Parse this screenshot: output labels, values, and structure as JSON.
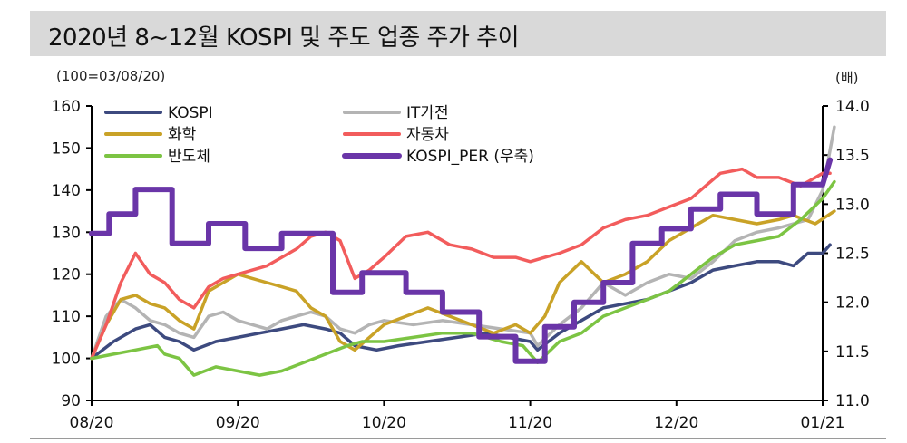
{
  "title": "2020년 8~12월 KOSPI 및 주도 업종 주가 추이",
  "left_unit": "(100=03/08/20)",
  "right_unit": "(배)",
  "chart_data": {
    "type": "line",
    "x_labels": [
      "08/20",
      "09/20",
      "10/20",
      "11/20",
      "12/20",
      "01/21"
    ],
    "x_domain": [
      0,
      5
    ],
    "y_left": {
      "range": [
        90,
        160
      ],
      "ticks": [
        90,
        100,
        110,
        120,
        130,
        140,
        150,
        160
      ]
    },
    "y_right": {
      "range": [
        11.0,
        14.0
      ],
      "ticks": [
        "11.0",
        "11.5",
        "12.0",
        "12.5",
        "13.0",
        "13.5",
        "14.0"
      ]
    },
    "legend_placement": "top-left",
    "series": [
      {
        "name": "KOSPI",
        "axis": "left",
        "color": "#3d4a7f",
        "points": [
          [
            0,
            100
          ],
          [
            0.15,
            104
          ],
          [
            0.3,
            107
          ],
          [
            0.4,
            108
          ],
          [
            0.5,
            105
          ],
          [
            0.6,
            104
          ],
          [
            0.7,
            102
          ],
          [
            0.85,
            104
          ],
          [
            1.0,
            105
          ],
          [
            1.15,
            106
          ],
          [
            1.3,
            107
          ],
          [
            1.45,
            108
          ],
          [
            1.6,
            107
          ],
          [
            1.7,
            106
          ],
          [
            1.8,
            103
          ],
          [
            1.95,
            102
          ],
          [
            2.1,
            103
          ],
          [
            2.3,
            104
          ],
          [
            2.5,
            105
          ],
          [
            2.7,
            106
          ],
          [
            2.85,
            105
          ],
          [
            3.0,
            104
          ],
          [
            3.05,
            102
          ],
          [
            3.2,
            106
          ],
          [
            3.35,
            109
          ],
          [
            3.5,
            112
          ],
          [
            3.65,
            113
          ],
          [
            3.8,
            114
          ],
          [
            3.95,
            116
          ],
          [
            4.1,
            118
          ],
          [
            4.25,
            121
          ],
          [
            4.4,
            122
          ],
          [
            4.55,
            123
          ],
          [
            4.7,
            123
          ],
          [
            4.8,
            122
          ],
          [
            4.9,
            125
          ],
          [
            5.0,
            125
          ],
          [
            5.05,
            127
          ]
        ]
      },
      {
        "name": "IT가전",
        "axis": "left",
        "color": "#b4b4b4",
        "points": [
          [
            0,
            100
          ],
          [
            0.1,
            110
          ],
          [
            0.2,
            114
          ],
          [
            0.3,
            112
          ],
          [
            0.4,
            109
          ],
          [
            0.5,
            108
          ],
          [
            0.6,
            106
          ],
          [
            0.7,
            105
          ],
          [
            0.8,
            110
          ],
          [
            0.9,
            111
          ],
          [
            1.0,
            109
          ],
          [
            1.1,
            108
          ],
          [
            1.2,
            107
          ],
          [
            1.3,
            109
          ],
          [
            1.4,
            110
          ],
          [
            1.5,
            111
          ],
          [
            1.6,
            110
          ],
          [
            1.7,
            107
          ],
          [
            1.8,
            106
          ],
          [
            1.9,
            108
          ],
          [
            2.0,
            109
          ],
          [
            2.2,
            108
          ],
          [
            2.4,
            109
          ],
          [
            2.6,
            108
          ],
          [
            2.8,
            107
          ],
          [
            3.0,
            106
          ],
          [
            3.05,
            103
          ],
          [
            3.2,
            108
          ],
          [
            3.35,
            112
          ],
          [
            3.5,
            118
          ],
          [
            3.65,
            115
          ],
          [
            3.8,
            118
          ],
          [
            3.95,
            120
          ],
          [
            4.1,
            119
          ],
          [
            4.25,
            123
          ],
          [
            4.4,
            128
          ],
          [
            4.55,
            130
          ],
          [
            4.7,
            131
          ],
          [
            4.8,
            132
          ],
          [
            4.9,
            133
          ],
          [
            5.0,
            140
          ],
          [
            5.08,
            155
          ]
        ]
      },
      {
        "name": "화학",
        "axis": "left",
        "color": "#c9a227",
        "points": [
          [
            0,
            100
          ],
          [
            0.1,
            108
          ],
          [
            0.2,
            114
          ],
          [
            0.3,
            115
          ],
          [
            0.4,
            113
          ],
          [
            0.5,
            112
          ],
          [
            0.6,
            109
          ],
          [
            0.7,
            107
          ],
          [
            0.8,
            116
          ],
          [
            0.9,
            118
          ],
          [
            1.0,
            120
          ],
          [
            1.1,
            119
          ],
          [
            1.2,
            118
          ],
          [
            1.3,
            117
          ],
          [
            1.4,
            116
          ],
          [
            1.5,
            112
          ],
          [
            1.6,
            110
          ],
          [
            1.7,
            104
          ],
          [
            1.8,
            102
          ],
          [
            1.9,
            105
          ],
          [
            2.0,
            108
          ],
          [
            2.15,
            110
          ],
          [
            2.3,
            112
          ],
          [
            2.45,
            110
          ],
          [
            2.6,
            108
          ],
          [
            2.75,
            106
          ],
          [
            2.9,
            108
          ],
          [
            3.0,
            106
          ],
          [
            3.1,
            110
          ],
          [
            3.2,
            118
          ],
          [
            3.35,
            123
          ],
          [
            3.5,
            118
          ],
          [
            3.65,
            120
          ],
          [
            3.8,
            123
          ],
          [
            3.95,
            128
          ],
          [
            4.1,
            131
          ],
          [
            4.25,
            134
          ],
          [
            4.4,
            133
          ],
          [
            4.55,
            132
          ],
          [
            4.7,
            133
          ],
          [
            4.8,
            134
          ],
          [
            4.95,
            132
          ],
          [
            5.08,
            135
          ]
        ]
      },
      {
        "name": "자동차",
        "axis": "left",
        "color": "#f25c5c",
        "points": [
          [
            0,
            100
          ],
          [
            0.1,
            108
          ],
          [
            0.2,
            118
          ],
          [
            0.3,
            125
          ],
          [
            0.4,
            120
          ],
          [
            0.5,
            118
          ],
          [
            0.6,
            114
          ],
          [
            0.7,
            112
          ],
          [
            0.8,
            117
          ],
          [
            0.9,
            119
          ],
          [
            1.0,
            120
          ],
          [
            1.1,
            121
          ],
          [
            1.2,
            122
          ],
          [
            1.3,
            124
          ],
          [
            1.4,
            126
          ],
          [
            1.5,
            129
          ],
          [
            1.6,
            130
          ],
          [
            1.7,
            128
          ],
          [
            1.8,
            119
          ],
          [
            1.9,
            121
          ],
          [
            2.0,
            124
          ],
          [
            2.15,
            129
          ],
          [
            2.3,
            130
          ],
          [
            2.45,
            127
          ],
          [
            2.6,
            126
          ],
          [
            2.75,
            124
          ],
          [
            2.9,
            124
          ],
          [
            3.0,
            123
          ],
          [
            3.1,
            124
          ],
          [
            3.2,
            125
          ],
          [
            3.35,
            127
          ],
          [
            3.5,
            131
          ],
          [
            3.65,
            133
          ],
          [
            3.8,
            134
          ],
          [
            3.95,
            136
          ],
          [
            4.1,
            138
          ],
          [
            4.2,
            141
          ],
          [
            4.3,
            144
          ],
          [
            4.45,
            145
          ],
          [
            4.55,
            143
          ],
          [
            4.7,
            143
          ],
          [
            4.85,
            141
          ],
          [
            5.0,
            144
          ],
          [
            5.05,
            144
          ]
        ]
      },
      {
        "name": "반도체",
        "axis": "left",
        "color": "#7cc443",
        "points": [
          [
            0,
            100
          ],
          [
            0.15,
            101
          ],
          [
            0.3,
            102
          ],
          [
            0.45,
            103
          ],
          [
            0.5,
            101
          ],
          [
            0.6,
            100
          ],
          [
            0.7,
            96
          ],
          [
            0.85,
            98
          ],
          [
            1.0,
            97
          ],
          [
            1.15,
            96
          ],
          [
            1.3,
            97
          ],
          [
            1.45,
            99
          ],
          [
            1.6,
            101
          ],
          [
            1.75,
            103
          ],
          [
            1.85,
            104
          ],
          [
            2.0,
            104
          ],
          [
            2.2,
            105
          ],
          [
            2.4,
            106
          ],
          [
            2.6,
            106
          ],
          [
            2.8,
            104
          ],
          [
            2.95,
            103
          ],
          [
            3.05,
            99
          ],
          [
            3.2,
            104
          ],
          [
            3.35,
            106
          ],
          [
            3.5,
            110
          ],
          [
            3.65,
            112
          ],
          [
            3.8,
            114
          ],
          [
            3.95,
            116
          ],
          [
            4.1,
            120
          ],
          [
            4.25,
            124
          ],
          [
            4.4,
            127
          ],
          [
            4.55,
            128
          ],
          [
            4.7,
            129
          ],
          [
            4.85,
            133
          ],
          [
            5.0,
            138
          ],
          [
            5.08,
            142
          ]
        ]
      },
      {
        "name": "KOSPI_PER (우축)",
        "axis": "right",
        "color": "#6a35a8",
        "points": [
          [
            0,
            12.7
          ],
          [
            0.12,
            12.7
          ],
          [
            0.12,
            12.9
          ],
          [
            0.3,
            12.9
          ],
          [
            0.3,
            13.15
          ],
          [
            0.55,
            13.15
          ],
          [
            0.55,
            12.6
          ],
          [
            0.8,
            12.6
          ],
          [
            0.8,
            12.8
          ],
          [
            1.05,
            12.8
          ],
          [
            1.05,
            12.55
          ],
          [
            1.3,
            12.55
          ],
          [
            1.3,
            12.7
          ],
          [
            1.65,
            12.7
          ],
          [
            1.65,
            12.1
          ],
          [
            1.85,
            12.1
          ],
          [
            1.85,
            12.3
          ],
          [
            2.15,
            12.3
          ],
          [
            2.15,
            12.1
          ],
          [
            2.4,
            12.1
          ],
          [
            2.4,
            11.9
          ],
          [
            2.65,
            11.9
          ],
          [
            2.65,
            11.65
          ],
          [
            2.9,
            11.65
          ],
          [
            2.9,
            11.4
          ],
          [
            3.1,
            11.4
          ],
          [
            3.1,
            11.75
          ],
          [
            3.3,
            11.75
          ],
          [
            3.3,
            12.0
          ],
          [
            3.5,
            12.0
          ],
          [
            3.5,
            12.2
          ],
          [
            3.7,
            12.2
          ],
          [
            3.7,
            12.6
          ],
          [
            3.9,
            12.6
          ],
          [
            3.9,
            12.75
          ],
          [
            4.1,
            12.75
          ],
          [
            4.1,
            12.95
          ],
          [
            4.3,
            12.95
          ],
          [
            4.3,
            13.1
          ],
          [
            4.55,
            13.1
          ],
          [
            4.55,
            12.9
          ],
          [
            4.8,
            12.9
          ],
          [
            4.8,
            13.2
          ],
          [
            5.0,
            13.2
          ],
          [
            5.05,
            13.45
          ]
        ]
      }
    ]
  }
}
